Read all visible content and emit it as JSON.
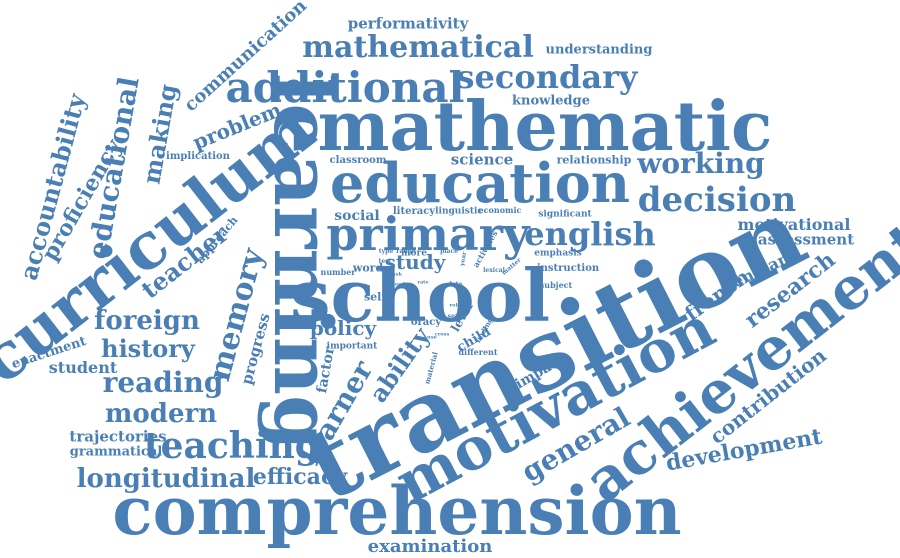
{
  "color": "#4a7fb5",
  "words": [
    "comprehension",
    "transition",
    "mathematic",
    "school",
    "learning",
    "curriculum",
    "motivation",
    "achievement",
    "education",
    "primary",
    "additional",
    "mathematical",
    "secondary",
    "decision",
    "working",
    "english",
    "teaching",
    "longitudinal",
    "reading",
    "modern",
    "history",
    "foreign",
    "memory",
    "teacher",
    "educational",
    "accountability",
    "proficiency",
    "making",
    "communication",
    "problem",
    "general",
    "development",
    "contribution",
    "research",
    "french",
    "england",
    "assessment",
    "motivational",
    "examination",
    "efficacy",
    "trajectories",
    "grammatical",
    "student",
    "enactment",
    "progress",
    "factor",
    "learner",
    "ability",
    "policy",
    "study",
    "social",
    "science",
    "knowledge",
    "understanding",
    "performativity",
    "relationship",
    "implication",
    "approach",
    "literacy",
    "linguistic",
    "economic",
    "significant",
    "instruction",
    "emphasis",
    "impact",
    "child",
    "level",
    "oracy",
    "important",
    "self",
    "word",
    "number",
    "different",
    "material",
    "finding",
    "activities",
    "subject",
    "lexical",
    "matter",
    "classroom",
    "more",
    "type",
    "test",
    "place",
    "range",
    "year",
    "data",
    "sense",
    "task",
    "need",
    "cross",
    "role",
    "rate",
    "use"
  ]
}
